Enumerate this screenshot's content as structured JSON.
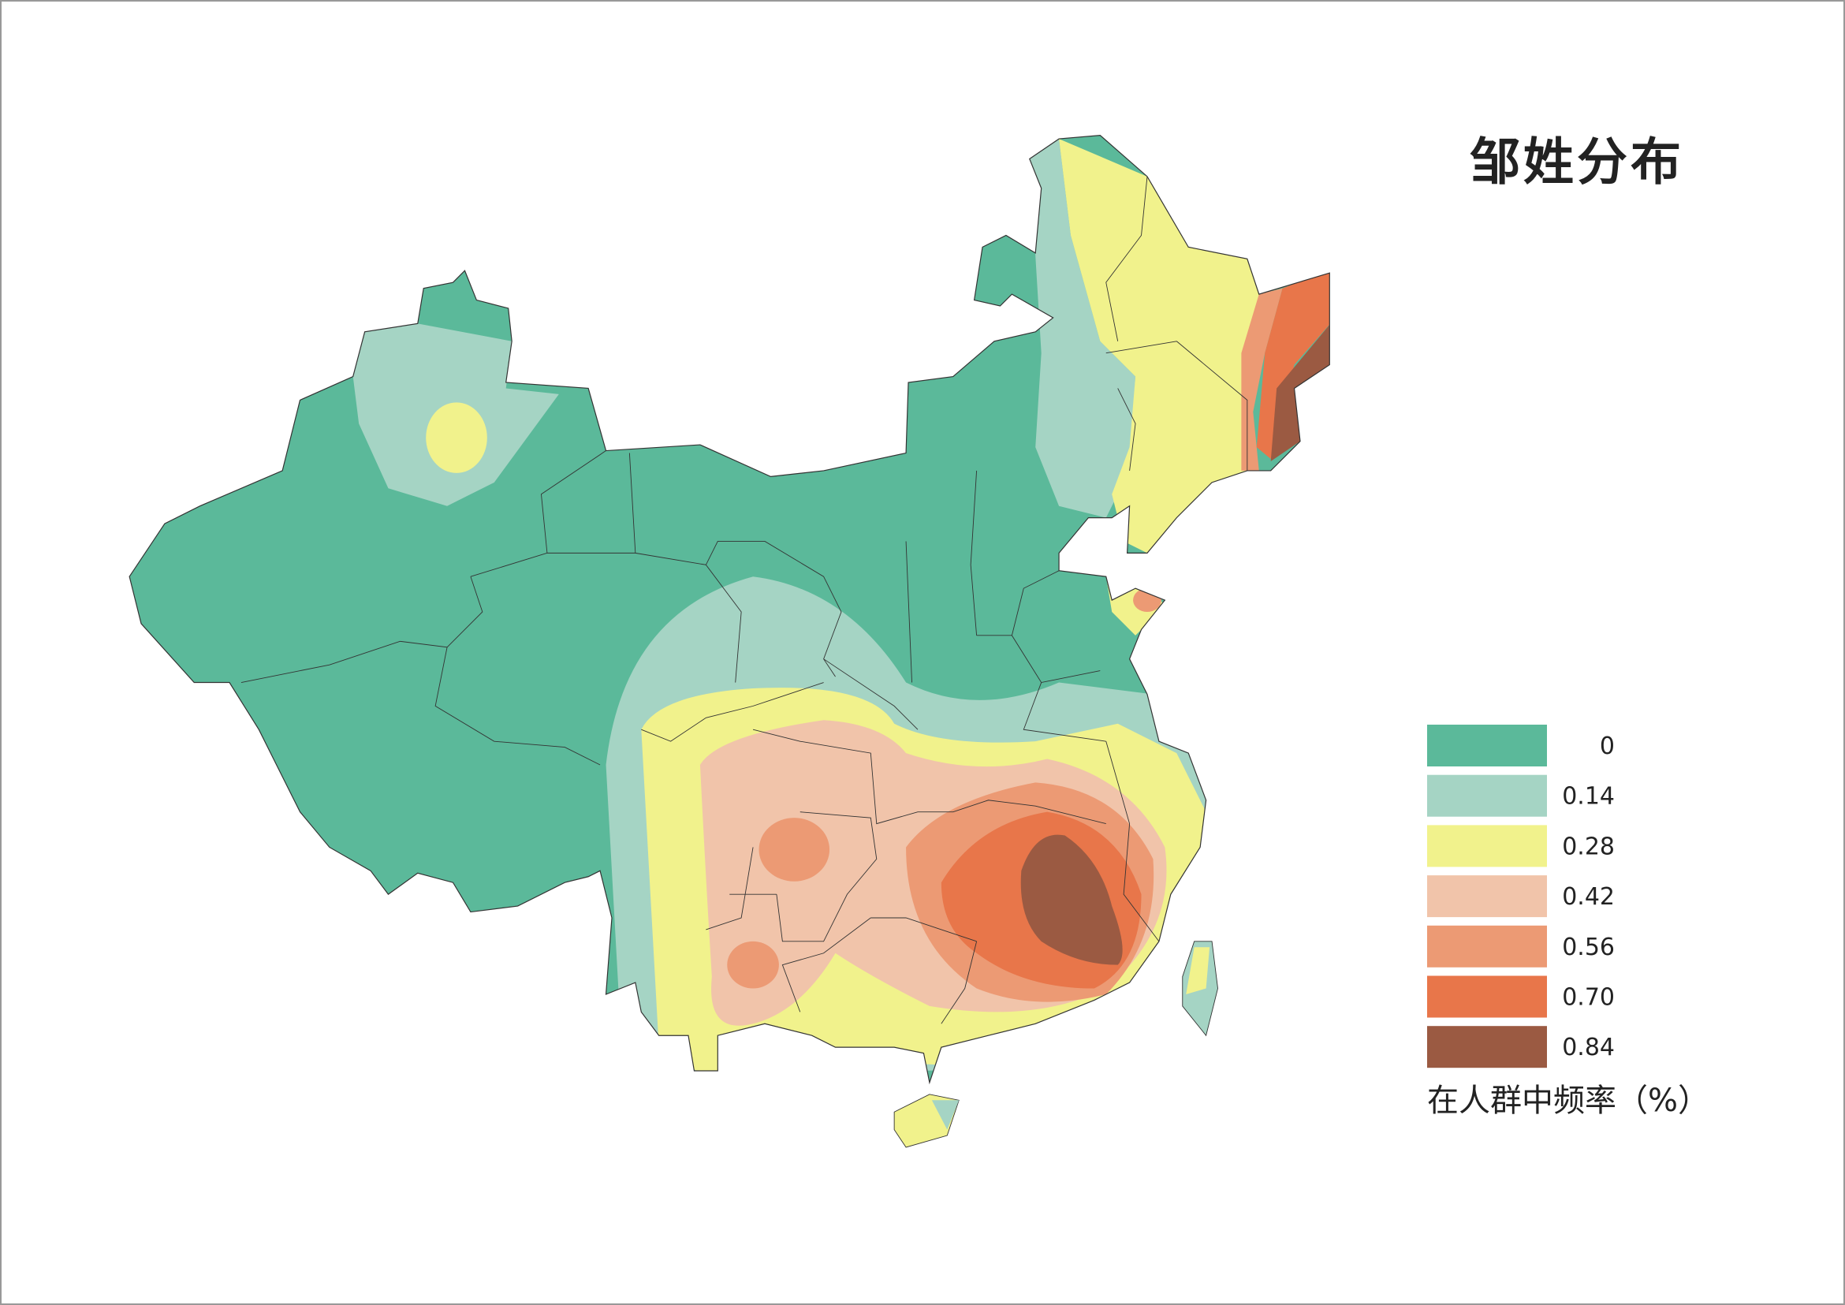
{
  "title": "邹姓分布",
  "legend": {
    "items": [
      {
        "label": "0",
        "color": "#5bb99a"
      },
      {
        "label": "0.14",
        "color": "#a5d4c4"
      },
      {
        "label": "0.28",
        "color": "#f1f28c"
      },
      {
        "label": "0.42",
        "color": "#f1c4aa"
      },
      {
        "label": "0.56",
        "color": "#ec9a74"
      },
      {
        "label": "0.70",
        "color": "#e8764a"
      },
      {
        "label": "0.84",
        "color": "#9b5a42"
      }
    ],
    "caption": "在人群中频率（%）"
  }
}
